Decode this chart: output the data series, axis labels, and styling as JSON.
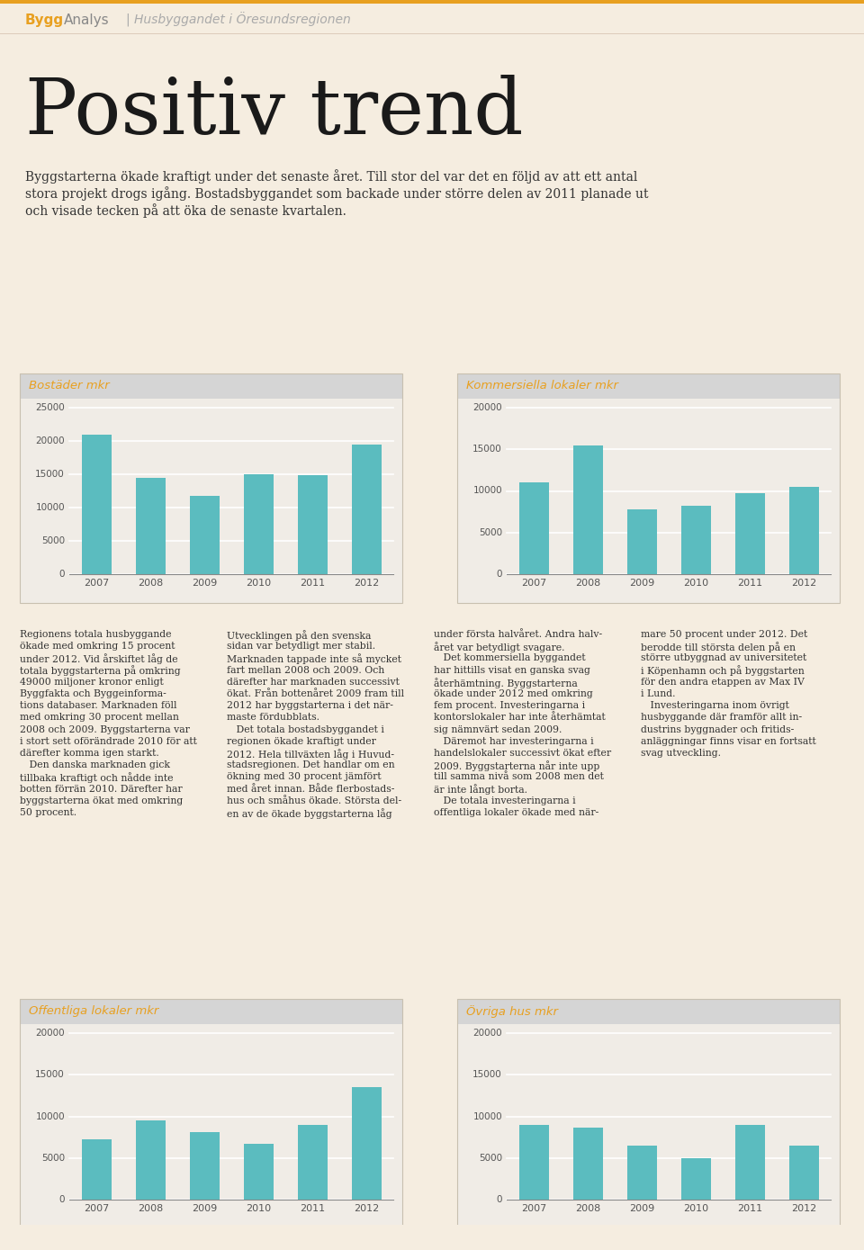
{
  "background_color": "#f5ede0",
  "bygg_color": "#e8a020",
  "title_main": "Positiv trend",
  "bar_color": "#5bbcbf",
  "grid_color": "#ffffff",
  "title_color": "#e8a020",
  "years": [
    "2007",
    "2008",
    "2009",
    "2010",
    "2011",
    "2012"
  ],
  "charts": [
    {
      "title": "Bostäder mkr",
      "values": [
        21000,
        14500,
        11700,
        15000,
        14800,
        19500
      ],
      "ylim": [
        0,
        25000
      ],
      "yticks": [
        0,
        5000,
        10000,
        15000,
        20000,
        25000
      ]
    },
    {
      "title": "Kommersiella lokaler mkr",
      "values": [
        11000,
        15500,
        7800,
        8200,
        9700,
        10500
      ],
      "ylim": [
        0,
        20000
      ],
      "yticks": [
        0,
        5000,
        10000,
        15000,
        20000
      ]
    },
    {
      "title": "Offentliga lokaler mkr",
      "values": [
        7200,
        9500,
        8100,
        6700,
        9000,
        13500
      ],
      "ylim": [
        0,
        20000
      ],
      "yticks": [
        0,
        5000,
        10000,
        15000,
        20000
      ]
    },
    {
      "title": "Övriga hus mkr",
      "values": [
        9000,
        8700,
        6500,
        5000,
        9000,
        6500
      ],
      "ylim": [
        0,
        20000
      ],
      "yticks": [
        0,
        5000,
        10000,
        15000,
        20000
      ]
    }
  ]
}
